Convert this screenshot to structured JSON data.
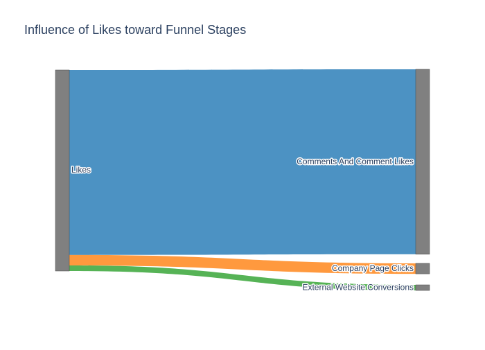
{
  "chart_data": {
    "type": "sankey",
    "title": "Influence of Likes toward Funnel Stages",
    "nodes": [
      {
        "id": "likes",
        "label": "Likes",
        "color": "#808080",
        "side": "source"
      },
      {
        "id": "comments",
        "label": "Comments And Comment Likes",
        "color": "#808080",
        "side": "target"
      },
      {
        "id": "clicks",
        "label": "Company Page Clicks",
        "color": "#808080",
        "side": "target"
      },
      {
        "id": "conversions",
        "label": "External Website Conversions",
        "color": "#808080",
        "side": "target"
      }
    ],
    "links": [
      {
        "source": "likes",
        "target": "comments",
        "value": 265,
        "color": "#1f77b4"
      },
      {
        "source": "likes",
        "target": "clicks",
        "value": 15,
        "color": "#ff7f0e"
      },
      {
        "source": "likes",
        "target": "conversions",
        "value": 8,
        "color": "#2ca02c"
      }
    ],
    "colors": {
      "node": "#808080",
      "node_border": "#444444",
      "label": "#2a3f5f"
    }
  }
}
